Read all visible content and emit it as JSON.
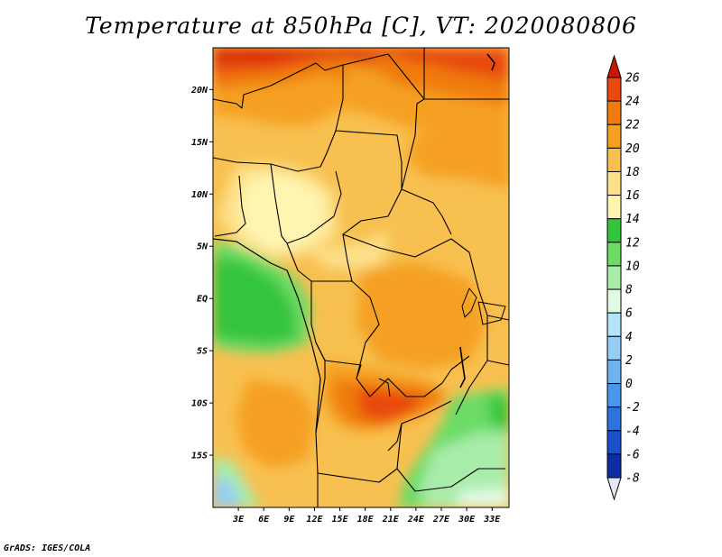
{
  "title": "Temperature at 850hPa [C], VT: 2020080806",
  "credit": "GrADS: IGES/COLA",
  "map": {
    "lon_range": [
      0,
      35
    ],
    "lat_range": [
      -20,
      24
    ],
    "lat_ticks": [
      {
        "value": 20,
        "label": "20N"
      },
      {
        "value": 15,
        "label": "15N"
      },
      {
        "value": 10,
        "label": "10N"
      },
      {
        "value": 5,
        "label": "5N"
      },
      {
        "value": 0,
        "label": "EQ"
      },
      {
        "value": -5,
        "label": "5S"
      },
      {
        "value": -10,
        "label": "10S"
      },
      {
        "value": -15,
        "label": "15S"
      }
    ],
    "lon_ticks": [
      {
        "value": 3,
        "label": "3E"
      },
      {
        "value": 6,
        "label": "6E"
      },
      {
        "value": 9,
        "label": "9E"
      },
      {
        "value": 12,
        "label": "12E"
      },
      {
        "value": 15,
        "label": "15E"
      },
      {
        "value": 18,
        "label": "18E"
      },
      {
        "value": 21,
        "label": "21E"
      },
      {
        "value": 24,
        "label": "24E"
      },
      {
        "value": 27,
        "label": "27E"
      },
      {
        "value": 30,
        "label": "30E"
      },
      {
        "value": 33,
        "label": "33E"
      }
    ]
  },
  "colorbar": {
    "levels": [
      {
        "label": "26",
        "color": "#d42000"
      },
      {
        "label": "24",
        "color": "#e84a10"
      },
      {
        "label": "22",
        "color": "#f07c10"
      },
      {
        "label": "20",
        "color": "#f5a020"
      },
      {
        "label": "18",
        "color": "#f8c050"
      },
      {
        "label": "16",
        "color": "#fde08a"
      },
      {
        "label": "14",
        "color": "#fff4b0"
      },
      {
        "label": "12",
        "color": "#34c43c"
      },
      {
        "label": "10",
        "color": "#6cdc66"
      },
      {
        "label": "8",
        "color": "#a8ecaa"
      },
      {
        "label": "6",
        "color": "#e0fae6"
      },
      {
        "label": "4",
        "color": "#b4e4fa"
      },
      {
        "label": "2",
        "color": "#94cef6"
      },
      {
        "label": "0",
        "color": "#6eb2f0"
      },
      {
        "label": "-2",
        "color": "#4a96ea"
      },
      {
        "label": "-4",
        "color": "#2e74dc"
      },
      {
        "label": "-6",
        "color": "#1a50c8"
      },
      {
        "label": "-8",
        "color": "#0c2ea0"
      }
    ],
    "over_color": "#c81800",
    "under_color": "#e6e6fa"
  }
}
